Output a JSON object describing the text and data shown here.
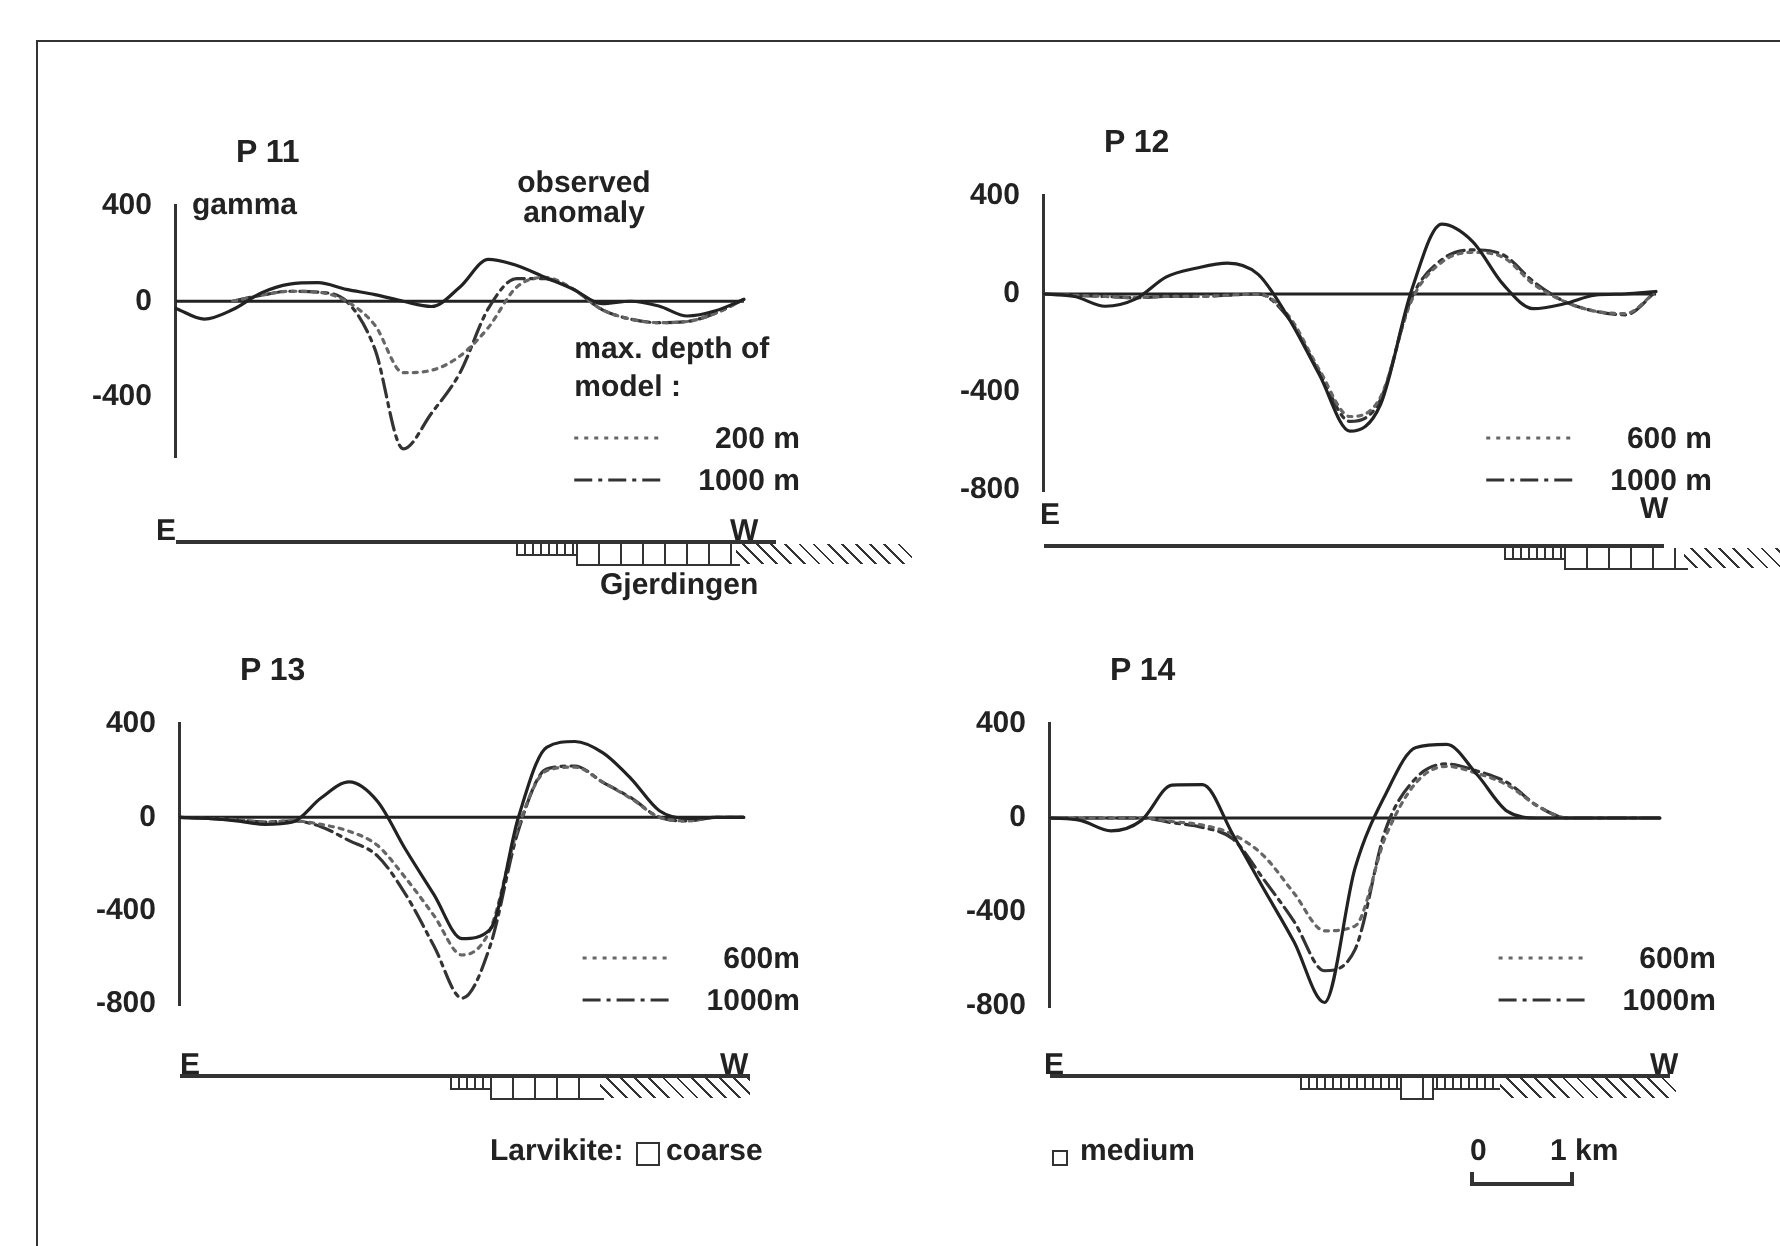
{
  "chart_data": [
    {
      "type": "line",
      "title": "P 11",
      "ylabel": "gamma",
      "legend_title": "max. depth of model :",
      "legend": "bottom right",
      "grid": false,
      "marker": "none",
      "tick_labels": "y",
      "categories": [
        null,
        null,
        null,
        null,
        null,
        null,
        null,
        null,
        null,
        null,
        null,
        null,
        null,
        null,
        null,
        null,
        null,
        null,
        null,
        null,
        null
      ],
      "ylim": [
        -650,
        400
      ],
      "yticks": [
        400,
        0,
        -400
      ],
      "ref_lines": [
        {
          "axis": "y",
          "value": 0
        }
      ],
      "annotations": [
        "E",
        "W",
        "observed anomaly",
        "Gjerdingen"
      ],
      "series": [
        {
          "color": "#222222",
          "line_style": "solid",
          "values": [
            -30,
            -75,
            -35,
            35,
            72,
            78,
            50,
            28,
            0,
            -22,
            60,
            176,
            150,
            100,
            50,
            -10,
            0,
            -20,
            -62,
            -40,
            8
          ]
        },
        {
          "name": "200 m",
          "color": "#666666",
          "line_style": "dotted",
          "values": [
            null,
            null,
            0,
            25,
            42,
            38,
            0,
            -100,
            -300,
            -290,
            -230,
            -110,
            60,
            100,
            50,
            -35,
            -75,
            -90,
            -85,
            -50,
            8
          ]
        },
        {
          "name": "1000 m",
          "color": "#333333",
          "line_style": "dashdot",
          "values": [
            null,
            null,
            0,
            25,
            42,
            38,
            0,
            -200,
            -620,
            -470,
            -300,
            -30,
            95,
            95,
            50,
            -35,
            -75,
            -90,
            -85,
            -50,
            8
          ]
        }
      ]
    },
    {
      "type": "line",
      "title": "P 12",
      "legend": "bottom right",
      "grid": false,
      "marker": "none",
      "tick_labels": "y",
      "categories": [
        null,
        null,
        null,
        null,
        null,
        null,
        null,
        null,
        null,
        null,
        null,
        null,
        null,
        null,
        null,
        null,
        null,
        null,
        null,
        null,
        null
      ],
      "ylim": [
        -800,
        400
      ],
      "yticks": [
        400,
        0,
        -400,
        -800
      ],
      "ref_lines": [
        {
          "axis": "y",
          "value": 0
        }
      ],
      "annotations": [
        "E",
        "W"
      ],
      "series": [
        {
          "color": "#222222",
          "line_style": "solid",
          "values": [
            0,
            -10,
            -50,
            -20,
            70,
            106,
            126,
            80,
            -100,
            -330,
            -560,
            -450,
            10,
            285,
            215,
            40,
            -60,
            -40,
            -5,
            0,
            10
          ]
        },
        {
          "name": "600 m",
          "color": "#666666",
          "line_style": "dotted",
          "values": [
            0,
            -5,
            -10,
            -15,
            -10,
            -10,
            -5,
            0,
            -90,
            -310,
            -500,
            -420,
            -30,
            130,
            170,
            150,
            40,
            -30,
            -70,
            -80,
            10
          ]
        },
        {
          "name": "1000 m",
          "color": "#333333",
          "line_style": "dashdot",
          "values": [
            0,
            -5,
            -10,
            -15,
            -10,
            -10,
            -5,
            0,
            -100,
            -320,
            -520,
            -430,
            -20,
            140,
            180,
            160,
            50,
            -30,
            -70,
            -85,
            10
          ]
        }
      ]
    },
    {
      "type": "line",
      "title": "P 13",
      "legend": "bottom right",
      "grid": false,
      "marker": "none",
      "tick_labels": "y",
      "categories": [
        null,
        null,
        null,
        null,
        null,
        null,
        null,
        null,
        null,
        null,
        null,
        null,
        null,
        null,
        null,
        null,
        null,
        null,
        null,
        null,
        null
      ],
      "ylim": [
        -800,
        400
      ],
      "yticks": [
        400,
        0,
        -400,
        -800
      ],
      "ref_lines": [
        {
          "axis": "y",
          "value": 0
        }
      ],
      "annotations": [
        "E",
        "W"
      ],
      "series": [
        {
          "color": "#222222",
          "line_style": "solid",
          "values": [
            0,
            -5,
            -15,
            -30,
            -20,
            83,
            152,
            69,
            -138,
            -330,
            -520,
            -480,
            0,
            300,
            325,
            276,
            165,
            28,
            -5,
            0,
            0
          ]
        },
        {
          "name": "600m",
          "color": "#666666",
          "line_style": "dotted",
          "values": [
            0,
            -5,
            -10,
            -20,
            -15,
            -30,
            -60,
            -120,
            -260,
            -420,
            -590,
            -480,
            -40,
            200,
            215,
            150,
            80,
            0,
            -15,
            0,
            0
          ]
        },
        {
          "name": "1000m",
          "color": "#333333",
          "line_style": "dashdot",
          "values": [
            0,
            -5,
            -10,
            -20,
            -15,
            -40,
            -100,
            -165,
            -330,
            -550,
            -775,
            -550,
            -55,
            207,
            220,
            150,
            83,
            0,
            -15,
            0,
            0
          ]
        }
      ]
    },
    {
      "type": "line",
      "title": "P 14",
      "legend": "bottom right",
      "grid": false,
      "marker": "none",
      "tick_labels": "y",
      "categories": [
        null,
        null,
        null,
        null,
        null,
        null,
        null,
        null,
        null,
        null,
        null,
        null,
        null,
        null,
        null,
        null,
        null,
        null,
        null,
        null,
        null
      ],
      "ylim": [
        -800,
        400
      ],
      "yticks": [
        400,
        0,
        -400,
        -800
      ],
      "ref_lines": [
        {
          "axis": "y",
          "value": 0
        }
      ],
      "annotations": [
        "E",
        "W"
      ],
      "series": [
        {
          "color": "#222222",
          "line_style": "solid",
          "values": [
            0,
            -10,
            -55,
            -10,
            140,
            142,
            -71,
            -300,
            -527,
            -785,
            -214,
            100,
            300,
            313,
            185,
            28,
            0,
            0,
            0,
            0,
            0
          ]
        },
        {
          "name": "600m",
          "color": "#666666",
          "line_style": "dotted",
          "values": [
            0,
            0,
            0,
            0,
            -15,
            -30,
            -70,
            -160,
            -320,
            -480,
            -460,
            -80,
            150,
            220,
            190,
            140,
            50,
            0,
            0,
            0,
            0
          ]
        },
        {
          "name": "1000m",
          "color": "#333333",
          "line_style": "dashdot",
          "values": [
            0,
            0,
            0,
            0,
            -20,
            -40,
            -90,
            -260,
            -440,
            -650,
            -560,
            -50,
            170,
            230,
            200,
            150,
            50,
            0,
            0,
            0,
            0
          ]
        }
      ]
    },
    {
      "type": "other",
      "annotations": [
        "Larvikite:",
        "coarse",
        "medium",
        "0",
        "1 km"
      ]
    }
  ]
}
